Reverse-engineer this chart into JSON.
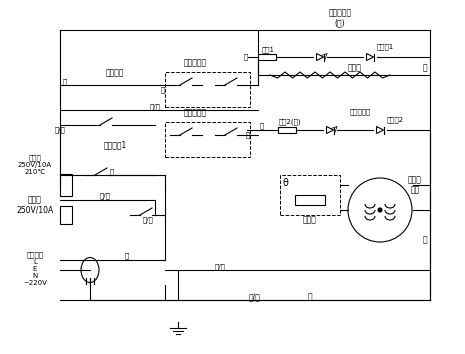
{
  "title": "",
  "bg_color": "#ffffff",
  "line_color": "#000000",
  "fig_width": 4.65,
  "fig_height": 3.54,
  "dpi": 100,
  "labels": {
    "heating_indicator": "制热指示灯\n(红)",
    "resistor1": "电阻1",
    "diode1": "二极管1",
    "heater": "发热器",
    "heating_thermostat": "制热温控器",
    "heating_switch": "制热开关",
    "cooling_thermostat": "制冷温控器",
    "cooling_switch": "制冷开关1",
    "cooling_indicator": "制冷指示灯",
    "resistor2": "电阻2(绿)",
    "diode2": "二极管2",
    "compressor": "压缩机\n电机",
    "starter": "启动器",
    "fuse1": "熔断器\n250V/10A\n210℃",
    "fuse2": "熔断器\n250V/10A",
    "power_plug": "电源插头\nL\nE\nN\n~220V",
    "blue_right": "蓝",
    "blue_bottom": "蓝",
    "red_left": "红",
    "red_mid1": "红",
    "red_mid2": "红",
    "brown_mid": "棕",
    "brown_left": "棕",
    "yellow_green1": "黄/绿",
    "yellow_green2": "黄/绿",
    "yellow_green3": "黄/绿",
    "yellow_green_bottom": "黄/绿"
  }
}
